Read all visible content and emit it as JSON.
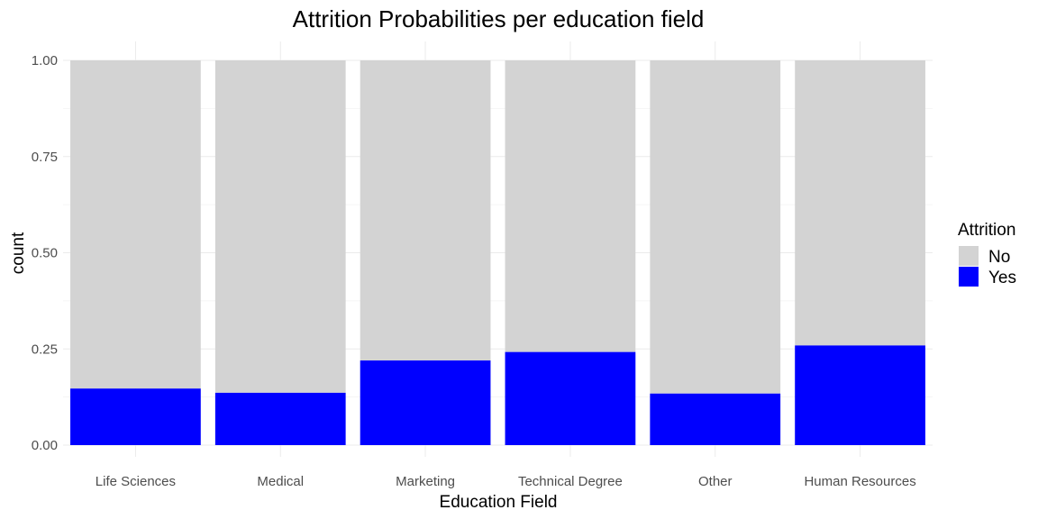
{
  "chart_data": {
    "type": "bar",
    "stacked": true,
    "title": "Attrition Probabilities per education field",
    "xlabel": "Education Field",
    "ylabel": "count",
    "ylim": [
      0,
      1
    ],
    "yticks": [
      "0.00",
      "0.25",
      "0.50",
      "0.75",
      "1.00"
    ],
    "grid": true,
    "legend": {
      "title": "Attrition",
      "position": "right"
    },
    "categories": [
      "Life Sciences",
      "Medical",
      "Marketing",
      "Technical Degree",
      "Other",
      "Human Resources"
    ],
    "series": [
      {
        "name": "No",
        "color": "#d3d3d3",
        "values": [
          0.853,
          0.864,
          0.78,
          0.758,
          0.866,
          0.741
        ]
      },
      {
        "name": "Yes",
        "color": "#0000ff",
        "values": [
          0.147,
          0.136,
          0.22,
          0.242,
          0.134,
          0.259
        ]
      }
    ]
  }
}
